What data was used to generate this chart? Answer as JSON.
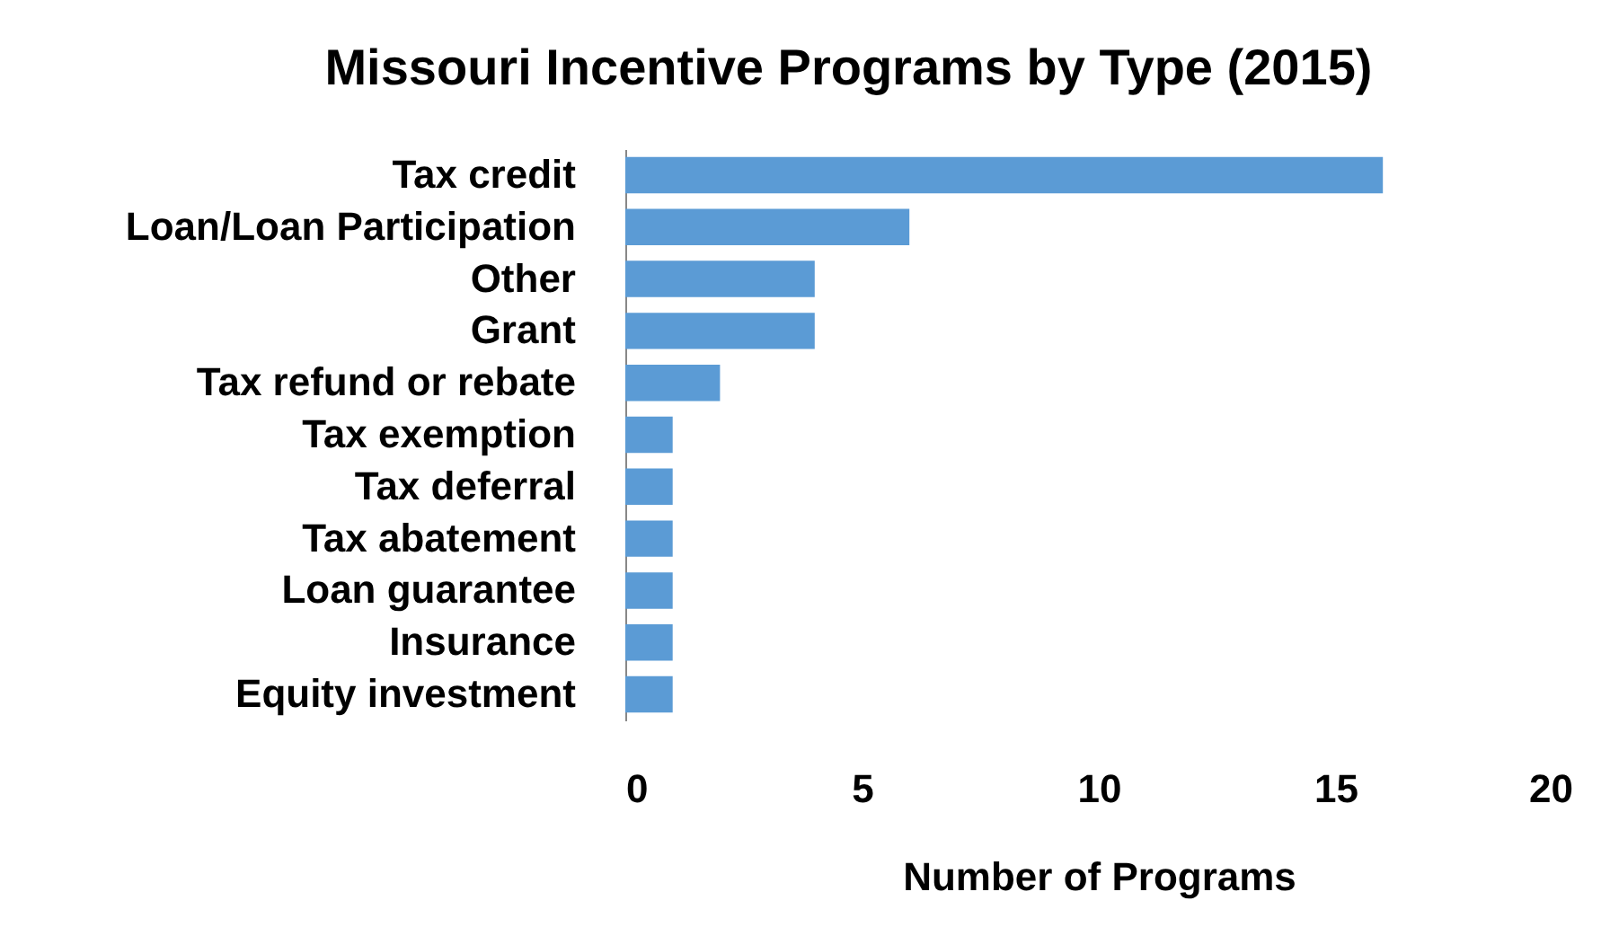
{
  "chart_data": {
    "type": "bar",
    "orientation": "horizontal",
    "title": "Missouri Incentive Programs by Type (2015)",
    "xlabel": "Number of Programs",
    "categories": [
      "Tax credit",
      "Loan/Loan Participation",
      "Other",
      "Grant",
      "Tax refund or rebate",
      "Tax exemption",
      "Tax deferral",
      "Tax abatement",
      "Loan guarantee",
      "Insurance",
      "Equity investment"
    ],
    "values": [
      16,
      6,
      4,
      4,
      2,
      1,
      1,
      1,
      1,
      1,
      1
    ],
    "color": "#5b9bd5",
    "xlim": [
      0,
      20
    ],
    "xticks": [
      0,
      5,
      10,
      15,
      20
    ],
    "grid": false
  }
}
